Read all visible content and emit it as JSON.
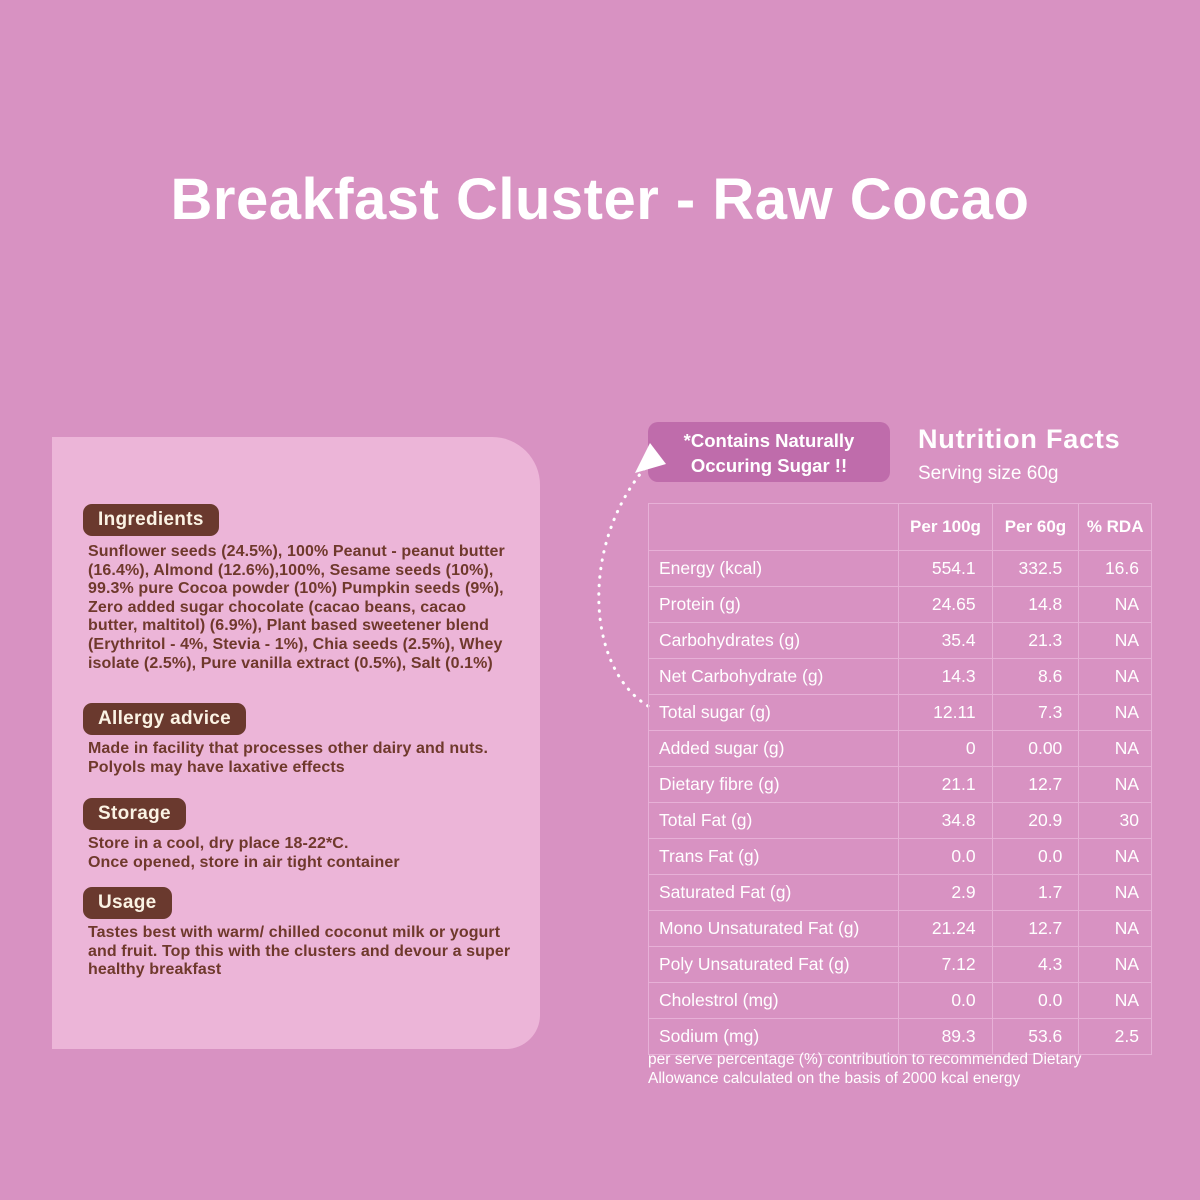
{
  "page": {
    "title": "Breakfast Cluster - Raw Cocao"
  },
  "colors": {
    "background": "#d892c2",
    "panel": "#ecb5d8",
    "badge_brown": "#6a392e",
    "badge_purple": "#bf6cab",
    "text_brown": "#6f392c",
    "table_border": "#e7b0d7",
    "text_white": "#ffffff"
  },
  "panel": {
    "sections": [
      {
        "heading": "Ingredients",
        "body": "Sunflower seeds (24.5%), 100% Peanut - peanut butter (16.4%), Almond (12.6%),100%,  Sesame seeds (10%), 99.3% pure Cocoa powder (10%) Pumpkin seeds (9%), Zero added sugar chocolate (cacao beans, cacao butter, maltitol) (6.9%), Plant based sweetener blend (Erythritol - 4%, Stevia - 1%), Chia seeds (2.5%), Whey isolate (2.5%), Pure vanilla extract (0.5%), Salt (0.1%)"
      },
      {
        "heading": "Allergy advice",
        "body": "Made in facility that processes other dairy and nuts. Polyols may have laxative effects"
      },
      {
        "heading": "Storage",
        "body": "Store in a cool, dry place 18-22*C.\nOnce opened, store in air tight container"
      },
      {
        "heading": "Usage",
        "body": "Tastes best with warm/ chilled coconut milk or yogurt and fruit. Top this with the clusters and devour a super healthy breakfast"
      }
    ]
  },
  "nutrition": {
    "callout": {
      "line1": "*Contains Naturally",
      "line2": "Occuring Sugar !!"
    },
    "title": "Nutrition Facts",
    "serving": "Serving size 60g",
    "footnote": "per serve percentage (%) contribution to recommended Dietary Allowance calculated on the basis of 2000 kcal energy",
    "table": {
      "headers": [
        "",
        "Per 100g",
        "Per 60g",
        "% RDA"
      ],
      "rows": [
        [
          "Energy (kcal)",
          "554.1",
          "332.5",
          "16.6"
        ],
        [
          "Protein (g)",
          "24.65",
          "14.8",
          "NA"
        ],
        [
          "Carbohydrates (g)",
          "35.4",
          "21.3",
          "NA"
        ],
        [
          "Net Carbohydrate (g)",
          "14.3",
          "8.6",
          "NA"
        ],
        [
          "Total sugar (g)",
          "12.11",
          "7.3",
          "NA"
        ],
        [
          "Added sugar (g)",
          "0",
          "0.00",
          "NA"
        ],
        [
          "Dietary fibre (g)",
          "21.1",
          "12.7",
          "NA"
        ],
        [
          "Total Fat (g)",
          "34.8",
          "20.9",
          "30"
        ],
        [
          "Trans Fat (g)",
          "0.0",
          "0.0",
          "NA"
        ],
        [
          "Saturated Fat (g)",
          "2.9",
          "1.7",
          "NA"
        ],
        [
          "Mono Unsaturated Fat (g)",
          "21.24",
          "12.7",
          "NA"
        ],
        [
          "Poly Unsaturated Fat (g)",
          "7.12",
          "4.3",
          "NA"
        ],
        [
          "Cholestrol (mg)",
          "0.0",
          "0.0",
          "NA"
        ],
        [
          "Sodium (mg)",
          "89.3",
          "53.6",
          "2.5"
        ]
      ]
    }
  }
}
